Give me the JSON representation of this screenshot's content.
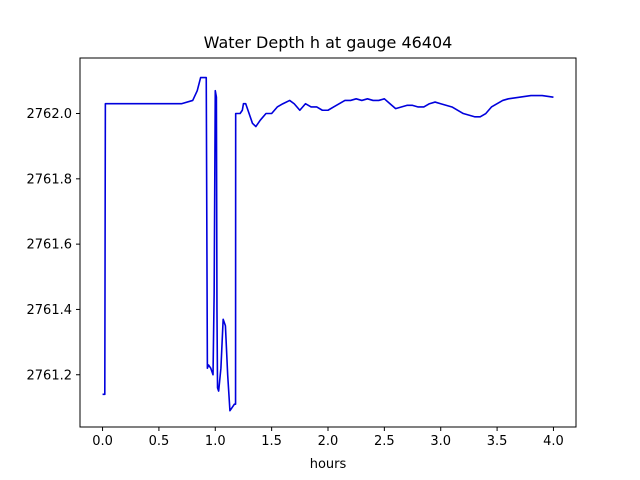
{
  "chart_data": {
    "type": "line",
    "title": "Water Depth h at gauge 46404",
    "xlabel": "hours",
    "ylabel": "",
    "xlim": [
      -0.2,
      4.2
    ],
    "ylim": [
      2761.04,
      2762.17
    ],
    "grid": false,
    "x_ticks": [
      0.0,
      0.5,
      1.0,
      1.5,
      2.0,
      2.5,
      3.0,
      3.5,
      4.0
    ],
    "x_tick_labels": [
      "0.0",
      "0.5",
      "1.0",
      "1.5",
      "2.0",
      "2.5",
      "3.0",
      "3.5",
      "4.0"
    ],
    "y_ticks": [
      2761.2,
      2761.4,
      2761.6,
      2761.8,
      2762.0
    ],
    "y_tick_labels": [
      "2761.2",
      "2761.4",
      "2761.6",
      "2761.8",
      "2762.0"
    ],
    "series": [
      {
        "color": "#0000dd",
        "x": [
          0.0,
          0.02,
          0.025,
          0.03,
          0.2,
          0.5,
          0.7,
          0.8,
          0.84,
          0.87,
          0.89,
          0.92,
          0.93,
          0.94,
          0.96,
          0.98,
          0.99,
          1.0,
          1.01,
          1.015,
          1.02,
          1.03,
          1.05,
          1.07,
          1.09,
          1.11,
          1.13,
          1.15,
          1.17,
          1.18,
          1.181,
          1.2,
          1.22,
          1.24,
          1.25,
          1.27,
          1.3,
          1.33,
          1.36,
          1.4,
          1.45,
          1.5,
          1.55,
          1.6,
          1.66,
          1.7,
          1.75,
          1.8,
          1.85,
          1.9,
          1.95,
          2.0,
          2.05,
          2.1,
          2.15,
          2.2,
          2.25,
          2.3,
          2.35,
          2.4,
          2.45,
          2.5,
          2.55,
          2.6,
          2.65,
          2.7,
          2.75,
          2.8,
          2.85,
          2.9,
          2.95,
          3.0,
          3.1,
          3.2,
          3.3,
          3.35,
          3.4,
          3.45,
          3.5,
          3.55,
          3.6,
          3.7,
          3.8,
          3.9,
          4.0
        ],
        "y": [
          2761.14,
          2761.14,
          2762.03,
          2762.03,
          2762.03,
          2762.03,
          2762.03,
          2762.04,
          2762.07,
          2762.11,
          2762.11,
          2762.11,
          2761.22,
          2761.23,
          2761.22,
          2761.2,
          2761.45,
          2762.07,
          2762.05,
          2761.4,
          2761.16,
          2761.15,
          2761.22,
          2761.37,
          2761.35,
          2761.2,
          2761.09,
          2761.1,
          2761.11,
          2761.11,
          2762.0,
          2762.0,
          2762.0,
          2762.01,
          2762.03,
          2762.03,
          2762.0,
          2761.97,
          2761.96,
          2761.98,
          2762.0,
          2762.0,
          2762.02,
          2762.03,
          2762.04,
          2762.03,
          2762.01,
          2762.03,
          2762.02,
          2762.02,
          2762.01,
          2762.01,
          2762.02,
          2762.03,
          2762.04,
          2762.04,
          2762.045,
          2762.04,
          2762.045,
          2762.04,
          2762.04,
          2762.045,
          2762.03,
          2762.015,
          2762.02,
          2762.025,
          2762.025,
          2762.02,
          2762.02,
          2762.03,
          2762.035,
          2762.03,
          2762.02,
          2762.0,
          2761.99,
          2761.99,
          2762.0,
          2762.02,
          2762.03,
          2762.04,
          2762.045,
          2762.05,
          2762.055,
          2762.055,
          2762.05
        ]
      }
    ]
  }
}
